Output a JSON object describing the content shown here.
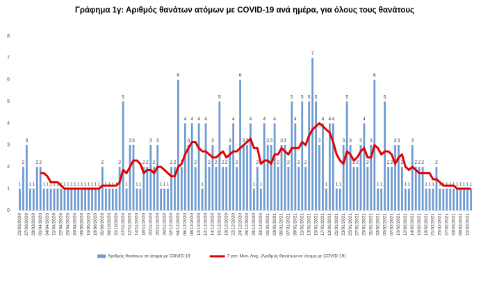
{
  "chart_data": {
    "type": "bar+line",
    "title": "Γράφημα 1γ: Αριθμός θανάτων ατόμων με COVID-19 ανά ημέρα, για όλους τους θανάτους",
    "categories": [
      "21/03/2020",
      null,
      "27/03/2020",
      null,
      "29/03/2020",
      null,
      "01/04/2020",
      null,
      "04/04/2020",
      null,
      "11/04/2020",
      null,
      "22/04/2020",
      null,
      "26/04/2020",
      null,
      "30/04/2020",
      null,
      "09/05/2020",
      null,
      "16/05/2020",
      null,
      "18/06/2020",
      null,
      "01/09/2020",
      null,
      "06/10/2020",
      null,
      "31/10/2020",
      null,
      "07/11/2020",
      null,
      "12/11/2020",
      null,
      "14/11/2020",
      null,
      "18/11/2020",
      null,
      "20/11/2020",
      null,
      "25/11/2020",
      null,
      "29/11/2020",
      null,
      "02/12/2020",
      null,
      "04/12/2020",
      null,
      "06/12/2020",
      null,
      "08/12/2020",
      null,
      "10/12/2020",
      null,
      "12/12/2020",
      null,
      "14/12/2020",
      null,
      "16/12/2020",
      null,
      "19/12/2020",
      null,
      "22/12/2020",
      null,
      "24/12/2020",
      null,
      "26/12/2020",
      null,
      "28/12/2020",
      null,
      "30/12/2020",
      null,
      "01/01/2021",
      null,
      "03/01/2021",
      null,
      "05/01/2021",
      null,
      "07/01/2021",
      null,
      "09/01/2021",
      null,
      "11/01/2021",
      null,
      "13/01/2021",
      null,
      "15/01/2021",
      null,
      "17/01/2021",
      null,
      "19/01/2021",
      null,
      "21/01/2021",
      null,
      "23/01/2021",
      null,
      "25/01/2021",
      null,
      "27/01/2021",
      null,
      "29/01/2021",
      null,
      "31/01/2021",
      null,
      "03/02/2021",
      null,
      "05/02/2021",
      null,
      "07/02/2021",
      null,
      "10/02/2021",
      null,
      "12/02/2021",
      null,
      "14/02/2021",
      null,
      "16/02/2021",
      null,
      "18/02/2021",
      null,
      "21/02/2021",
      null,
      "25/02/2021",
      null,
      "27/02/2021",
      null,
      "03/03/2021",
      null,
      "09/03/2021",
      null,
      "11/03/2021",
      null
    ],
    "series": [
      {
        "name": "Αριθμός θανάτων σε άτομα με COVID-19",
        "kind": "bar",
        "color": "#6d9bd1",
        "values": [
          1,
          2,
          3,
          1,
          1,
          2,
          2,
          1,
          1,
          1,
          1,
          1,
          1,
          1,
          1,
          1,
          1,
          1,
          1,
          1,
          1,
          1,
          1,
          1,
          2,
          1,
          1,
          1,
          1,
          2,
          5,
          1,
          3,
          3,
          1,
          1,
          2,
          2,
          3,
          2,
          3,
          1,
          1,
          1,
          2,
          2,
          6,
          2,
          4,
          3,
          4,
          2,
          4,
          1,
          4,
          2,
          3,
          2,
          5,
          2,
          2,
          3,
          4,
          2,
          6,
          3,
          3,
          4,
          1,
          2,
          1,
          4,
          3,
          3,
          4,
          2,
          3,
          3,
          2,
          5,
          4,
          2,
          5,
          2,
          5,
          7,
          5,
          3,
          4,
          1,
          4,
          4,
          1,
          1,
          3,
          5,
          3,
          2,
          2,
          3,
          4,
          2,
          3,
          6,
          1,
          1,
          5,
          2,
          2,
          3,
          3,
          2,
          1,
          1,
          3,
          2,
          2,
          2,
          1,
          1,
          1,
          2,
          1,
          1,
          1,
          1,
          1,
          1,
          1,
          1,
          1,
          1
        ]
      },
      {
        "name": "7 per. Mov. Avg. (Αριθμός θανάτων σε άτομα με COVID-19)",
        "kind": "line",
        "color": "#e00000",
        "values": [
          null,
          null,
          null,
          null,
          null,
          null,
          1.71,
          1.71,
          1.57,
          1.29,
          1.29,
          1.29,
          1.14,
          1.0,
          1.0,
          1.0,
          1.0,
          1.0,
          1.0,
          1.0,
          1.0,
          1.0,
          1.0,
          1.0,
          1.14,
          1.14,
          1.14,
          1.14,
          1.14,
          1.29,
          1.86,
          1.71,
          2.0,
          2.29,
          2.29,
          2.14,
          1.71,
          1.86,
          1.86,
          1.71,
          2.0,
          2.0,
          1.86,
          1.71,
          1.57,
          1.57,
          2.0,
          2.14,
          2.57,
          2.86,
          3.14,
          3.14,
          2.86,
          2.71,
          2.71,
          2.57,
          2.43,
          2.43,
          2.57,
          2.71,
          2.43,
          2.57,
          2.71,
          2.71,
          2.86,
          3.0,
          3.14,
          3.29,
          2.86,
          2.86,
          2.14,
          2.29,
          2.29,
          2.14,
          2.57,
          2.57,
          2.86,
          2.71,
          2.57,
          2.86,
          2.86,
          2.86,
          3.14,
          3.0,
          3.43,
          3.71,
          3.86,
          4.0,
          3.86,
          3.71,
          3.57,
          3.14,
          2.57,
          2.29,
          2.14,
          2.71,
          2.57,
          2.29,
          2.43,
          2.71,
          2.86,
          2.43,
          2.43,
          3.0,
          2.86,
          2.57,
          2.71,
          2.71,
          2.57,
          2.14,
          2.43,
          2.57,
          2.0,
          1.86,
          2.0,
          1.86,
          1.71,
          1.71,
          1.71,
          1.71,
          1.43,
          1.43,
          1.29,
          1.14,
          1.14,
          1.14,
          1.14,
          1.0,
          1.0,
          1.0,
          1.0,
          1.0
        ]
      }
    ],
    "ylim": [
      0,
      8
    ],
    "yticks": [
      0,
      1,
      2,
      3,
      4,
      5,
      6,
      7,
      8
    ]
  }
}
